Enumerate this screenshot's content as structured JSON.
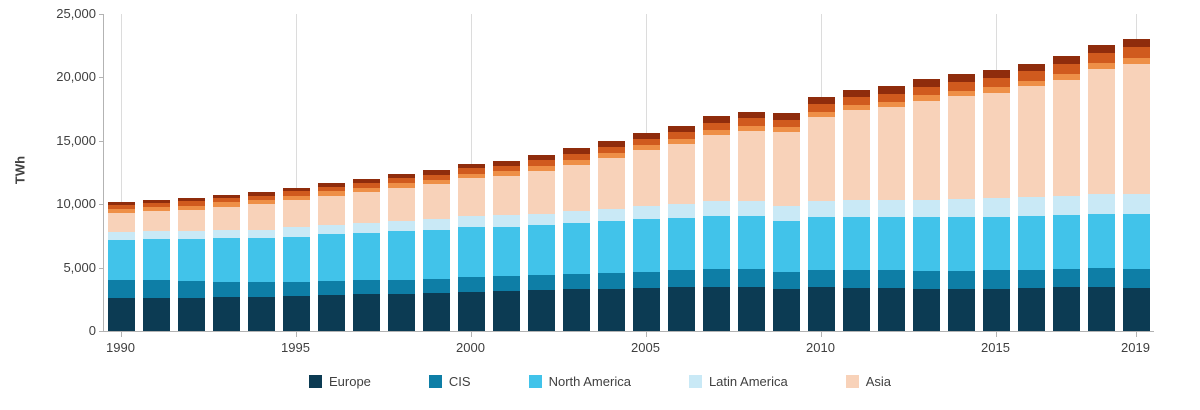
{
  "chart_data": {
    "type": "bar",
    "stacked": true,
    "title": "",
    "xlabel": "",
    "ylabel": "TWh",
    "ylim": [
      0,
      25000
    ],
    "grid": "vertical",
    "x": [
      1990,
      1991,
      1992,
      1993,
      1994,
      1995,
      1996,
      1997,
      1998,
      1999,
      2000,
      2001,
      2002,
      2003,
      2004,
      2005,
      2006,
      2007,
      2008,
      2009,
      2010,
      2011,
      2012,
      2013,
      2014,
      2015,
      2016,
      2017,
      2018,
      2019
    ],
    "x_ticks": [
      1990,
      1995,
      2000,
      2005,
      2010,
      2015,
      2019
    ],
    "y_ticks": [
      {
        "value": 0,
        "label": "0"
      },
      {
        "value": 5000,
        "label": "5,000"
      },
      {
        "value": 10000,
        "label": "10,000"
      },
      {
        "value": 15000,
        "label": "15,000"
      },
      {
        "value": 20000,
        "label": "20,000"
      },
      {
        "value": 25000,
        "label": "25,000"
      }
    ],
    "series": [
      {
        "name": "Europe",
        "color": "#0c3b53",
        "values": [
          2600,
          2620,
          2630,
          2650,
          2680,
          2750,
          2850,
          2900,
          2950,
          3000,
          3100,
          3150,
          3200,
          3300,
          3350,
          3400,
          3450,
          3500,
          3500,
          3300,
          3450,
          3400,
          3400,
          3350,
          3300,
          3350,
          3400,
          3450,
          3450,
          3400
        ]
      },
      {
        "name": "CIS",
        "color": "#0e7ea6",
        "values": [
          1400,
          1380,
          1300,
          1250,
          1180,
          1150,
          1130,
          1120,
          1110,
          1130,
          1160,
          1180,
          1200,
          1230,
          1260,
          1290,
          1330,
          1370,
          1390,
          1330,
          1380,
          1400,
          1420,
          1410,
          1420,
          1430,
          1450,
          1470,
          1510,
          1530
        ]
      },
      {
        "name": "North America",
        "color": "#41c3ea",
        "values": [
          3200,
          3250,
          3300,
          3400,
          3450,
          3550,
          3650,
          3700,
          3800,
          3850,
          3950,
          3900,
          3950,
          4000,
          4050,
          4150,
          4150,
          4200,
          4200,
          4050,
          4200,
          4200,
          4150,
          4200,
          4250,
          4250,
          4250,
          4200,
          4300,
          4300
        ]
      },
      {
        "name": "Latin America",
        "color": "#c9e9f6",
        "values": [
          600,
          620,
          640,
          660,
          690,
          720,
          750,
          790,
          820,
          840,
          880,
          890,
          920,
          950,
          1000,
          1050,
          1100,
          1150,
          1200,
          1200,
          1260,
          1320,
          1370,
          1410,
          1440,
          1470,
          1490,
          1510,
          1540,
          1560
        ]
      },
      {
        "name": "Asia",
        "color": "#f8d2b9",
        "values": [
          1500,
          1600,
          1700,
          1850,
          2000,
          2150,
          2300,
          2450,
          2600,
          2750,
          2950,
          3100,
          3350,
          3650,
          4000,
          4350,
          4750,
          5250,
          5500,
          5800,
          6600,
          7100,
          7300,
          7800,
          8100,
          8300,
          8700,
          9200,
          9900,
          10300
        ]
      },
      {
        "name": "",
        "color": "#ee8f47",
        "values": [
          320,
          325,
          330,
          335,
          340,
          345,
          350,
          355,
          360,
          365,
          370,
          375,
          380,
          385,
          390,
          395,
          400,
          405,
          410,
          405,
          420,
          425,
          430,
          435,
          440,
          445,
          450,
          460,
          470,
          480
        ]
      },
      {
        "name": "",
        "color": "#d05a1e",
        "values": [
          300,
          310,
          320,
          330,
          340,
          350,
          365,
          380,
          395,
          410,
          430,
          445,
          460,
          480,
          500,
          520,
          540,
          560,
          580,
          590,
          620,
          640,
          660,
          680,
          700,
          720,
          740,
          760,
          780,
          800
        ]
      },
      {
        "name": "",
        "color": "#8f2c0c",
        "values": [
          230,
          240,
          250,
          260,
          270,
          285,
          300,
          315,
          330,
          345,
          360,
          375,
          390,
          410,
          430,
          450,
          470,
          490,
          510,
          520,
          545,
          560,
          575,
          590,
          600,
          610,
          615,
          625,
          635,
          640
        ]
      }
    ]
  },
  "legend": {
    "items": [
      {
        "label": "Europe",
        "color": "#0c3b53"
      },
      {
        "label": "CIS",
        "color": "#0e7ea6"
      },
      {
        "label": "North America",
        "color": "#41c3ea"
      },
      {
        "label": "Latin America",
        "color": "#c9e9f6"
      },
      {
        "label": "Asia",
        "color": "#f8d2b9"
      }
    ]
  }
}
